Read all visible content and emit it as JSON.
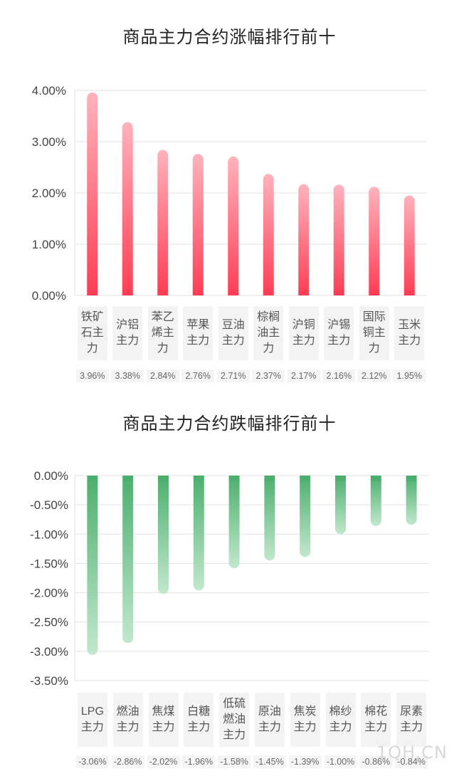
{
  "chart_data": [
    {
      "type": "bar",
      "title": "商品主力合约涨幅排行前十",
      "categories": [
        "铁矿石主力",
        "沪铝主力",
        "苯乙烯主力",
        "苹果主力",
        "豆油主力",
        "棕榈油主力",
        "沪铜主力",
        "沪锡主力",
        "国际铜主力",
        "玉米主力"
      ],
      "values": [
        3.96,
        3.38,
        2.84,
        2.76,
        2.71,
        2.37,
        2.17,
        2.16,
        2.12,
        1.95
      ],
      "value_labels": [
        "3.96%",
        "3.38%",
        "2.84%",
        "2.76%",
        "2.71%",
        "2.37%",
        "2.17%",
        "2.16%",
        "2.12%",
        "1.95%"
      ],
      "ylim": [
        0,
        4
      ],
      "yticks": [
        "0.00%",
        "1.00%",
        "2.00%",
        "3.00%",
        "4.00%"
      ],
      "ytick_values": [
        0,
        1,
        2,
        3,
        4
      ],
      "grid": true,
      "colors": {
        "top": "#ffb3bd",
        "bottom": "#ff3d54"
      }
    },
    {
      "type": "bar",
      "title": "商品主力合约跌幅排行前十",
      "categories": [
        "LPG主力",
        "燃油主力",
        "焦煤主力",
        "白糖主力",
        "低硫燃油主力",
        "原油主力",
        "焦炭主力",
        "棉纱主力",
        "棉花主力",
        "尿素主力"
      ],
      "values": [
        -3.06,
        -2.86,
        -2.02,
        -1.96,
        -1.58,
        -1.45,
        -1.39,
        -1.0,
        -0.86,
        -0.84
      ],
      "value_labels": [
        "-3.06%",
        "-2.86%",
        "-2.02%",
        "-1.96%",
        "-1.58%",
        "-1.45%",
        "-1.39%",
        "-1.00%",
        "-0.86%",
        "-0.84%"
      ],
      "ylim": [
        -3.5,
        0
      ],
      "yticks": [
        "0.00%",
        "-0.50%",
        "-1.00%",
        "-1.50%",
        "-2.00%",
        "-2.50%",
        "-3.00%",
        "-3.50%"
      ],
      "ytick_values": [
        0,
        -0.5,
        -1,
        -1.5,
        -2,
        -2.5,
        -3,
        -3.5
      ],
      "grid": true,
      "colors": {
        "top": "#4caf6e",
        "bottom": "#c2e8cd"
      }
    }
  ],
  "watermark": "1QH.CN"
}
